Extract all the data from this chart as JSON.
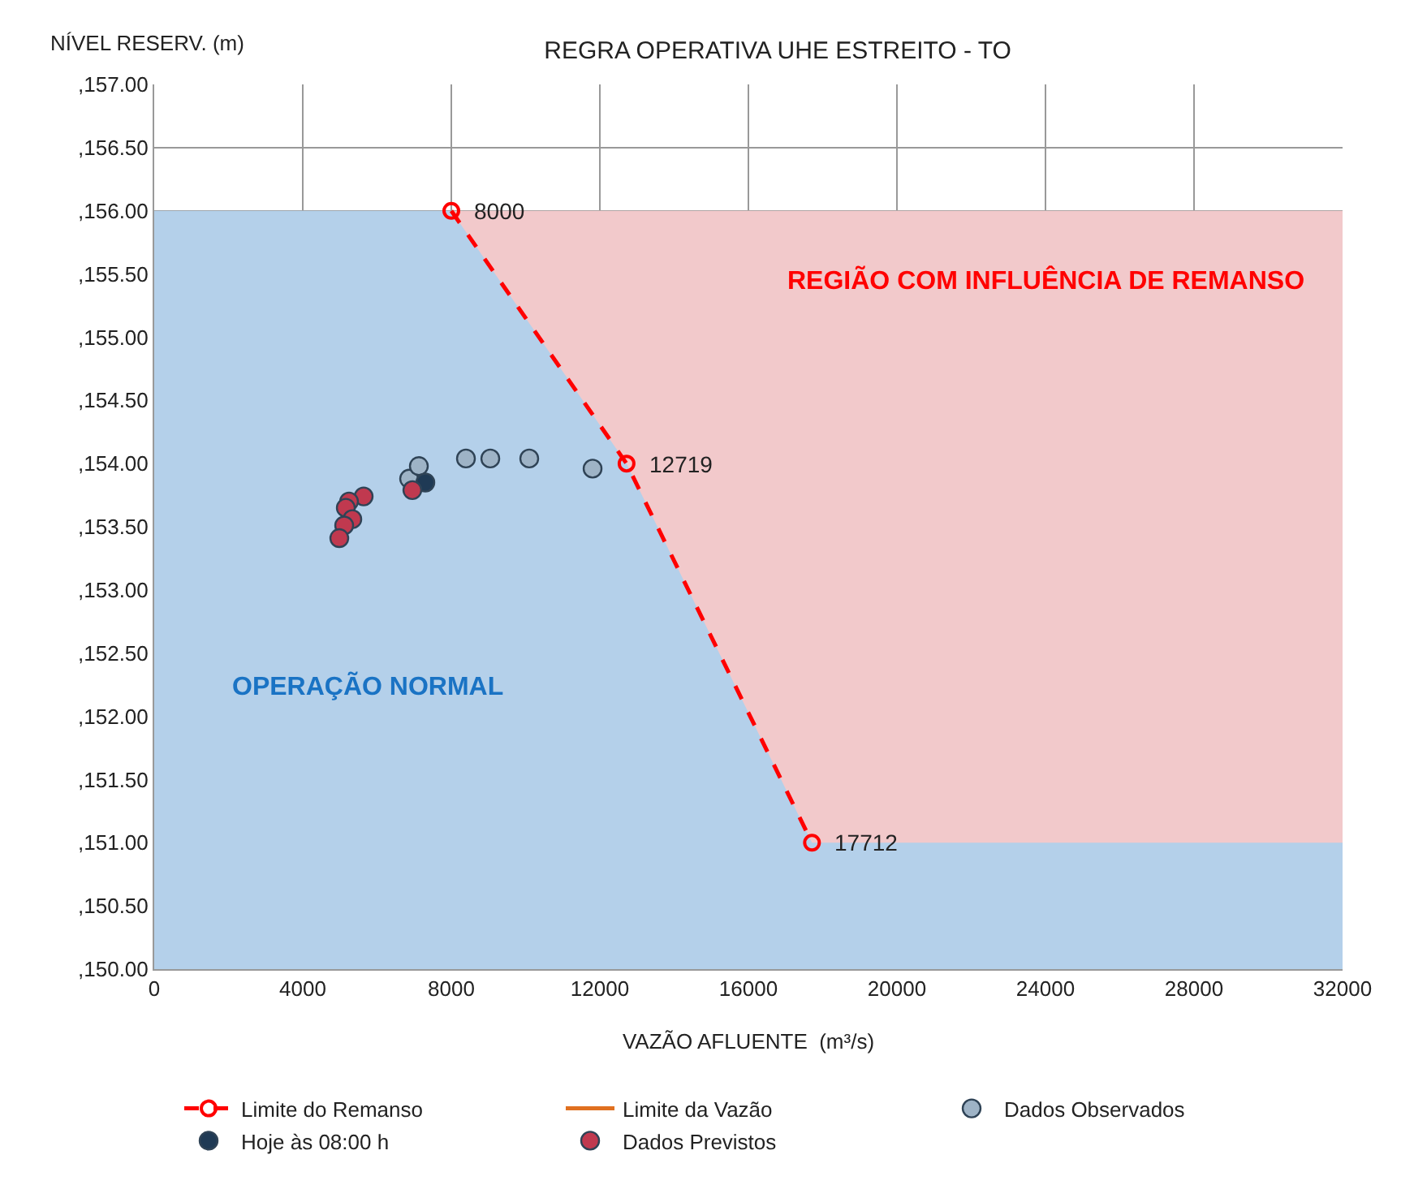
{
  "chart_data": {
    "type": "scatter",
    "title": "REGRA OPERATIVA UHE ESTREITO - TO",
    "xlabel": "VAZÃO AFLUENTE  (m³/s)",
    "ylabel": "NÍVEL RESERV. (m)",
    "xlim": [
      0,
      32000
    ],
    "xticks": [
      0,
      4000,
      8000,
      12000,
      16000,
      20000,
      24000,
      28000,
      32000
    ],
    "ylim": [
      150,
      157
    ],
    "yticks": [
      {
        "value": 150,
        "label": ",150.00"
      },
      {
        "value": 150.5,
        "label": ",150.50"
      },
      {
        "value": 151,
        "label": ",151.00"
      },
      {
        "value": 151.5,
        "label": ",151.50"
      },
      {
        "value": 152,
        "label": ",152.00"
      },
      {
        "value": 152.5,
        "label": ",152.50"
      },
      {
        "value": 153,
        "label": ",153.00"
      },
      {
        "value": 153.5,
        "label": ",153.50"
      },
      {
        "value": 154,
        "label": ",154.00"
      },
      {
        "value": 154.5,
        "label": ",154.50"
      },
      {
        "value": 155,
        "label": ",155.00"
      },
      {
        "value": 155.5,
        "label": ",155.50"
      },
      {
        "value": 156,
        "label": ",156.00"
      },
      {
        "value": 156.5,
        "label": ",156.50"
      },
      {
        "value": 157,
        "label": ",157.00"
      }
    ],
    "grid": true,
    "legend": "bottom",
    "series": [
      {
        "type": "area",
        "color": "#f2c9cb",
        "x": [
          8000,
          32000
        ],
        "values": [
          156,
          156
        ]
      },
      {
        "type": "area",
        "color": "#b4d0ea",
        "x": [
          0,
          8000,
          12719,
          17712,
          32000
        ],
        "values": [
          156,
          156,
          154,
          151,
          151
        ]
      },
      {
        "type": "line",
        "name": "Limite do Remanso",
        "color": "#ff0000",
        "line_style": "dashed",
        "marker": "circle-open",
        "x": [
          8000,
          12719,
          17712
        ],
        "values": [
          156,
          154,
          151
        ]
      },
      {
        "type": "line",
        "name": "Limite da Vazão",
        "color": "#e07020"
      },
      {
        "name": "Dados Observados",
        "color": "#9eb3c6",
        "marker": "circle",
        "x": [
          6864,
          7126,
          8394,
          9050,
          10099,
          11804
        ],
        "values": [
          153.88,
          153.98,
          154.04,
          154.04,
          154.04,
          153.96
        ]
      },
      {
        "name": "Hoje às 08:00 h",
        "color": "#1f3a55",
        "marker": "circle",
        "x": [
          7301
        ],
        "values": [
          153.85
        ]
      },
      {
        "name": "Dados Previstos",
        "color": "#c0394f",
        "marker": "circle",
        "x": [
          6951,
          5640,
          5246,
          5159,
          5334,
          5115,
          4984
        ],
        "values": [
          153.79,
          153.74,
          153.7,
          153.65,
          153.56,
          153.51,
          153.41
        ]
      }
    ],
    "annotations": [
      {
        "text": "8000",
        "x": 8000,
        "y": 156
      },
      {
        "text": "12719",
        "x": 12719,
        "y": 154
      },
      {
        "text": "17712",
        "x": 17712,
        "y": 151
      },
      "REGIÃO COM INFLUÊNCIA DE REMANSO",
      "OPERAÇÃO NORMAL"
    ]
  }
}
